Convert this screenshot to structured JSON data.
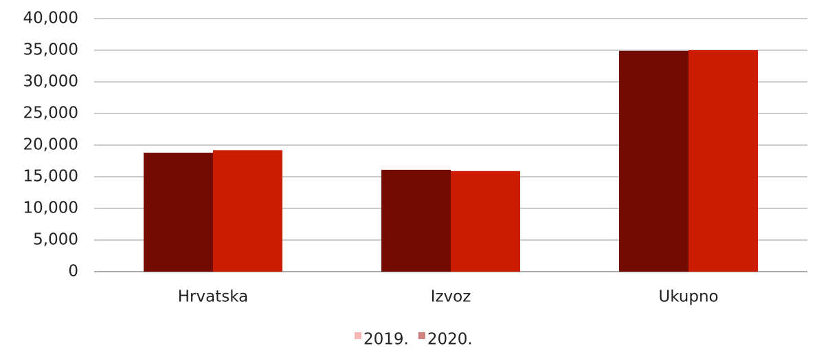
{
  "chart_data": {
    "type": "bar",
    "categories": [
      "Hrvatska",
      "Izvoz",
      "Ukupno"
    ],
    "series": [
      {
        "name": "2019.",
        "color": "#730c00",
        "legend_color": "#f4b8b8",
        "values": [
          18800,
          16100,
          34900
        ]
      },
      {
        "name": "2020.",
        "color": "#cc1c00",
        "legend_color": "#d08080",
        "values": [
          19200,
          15900,
          35000
        ]
      }
    ],
    "ylim": [
      0,
      40000
    ],
    "yticks": [
      0,
      {
        "value": 5000,
        "label": "5,000"
      },
      {
        "value": 10000,
        "label": "10,000"
      },
      {
        "value": 15000,
        "label": "15,000"
      },
      {
        "value": 20000,
        "label": "20,000"
      },
      {
        "value": 25000,
        "label": "25,000"
      },
      {
        "value": 30000,
        "label": "30,000"
      },
      {
        "value": 35000,
        "label": "35,000"
      },
      {
        "value": 40000,
        "label": "40,000"
      }
    ],
    "grid": true,
    "legend": "bottom"
  }
}
